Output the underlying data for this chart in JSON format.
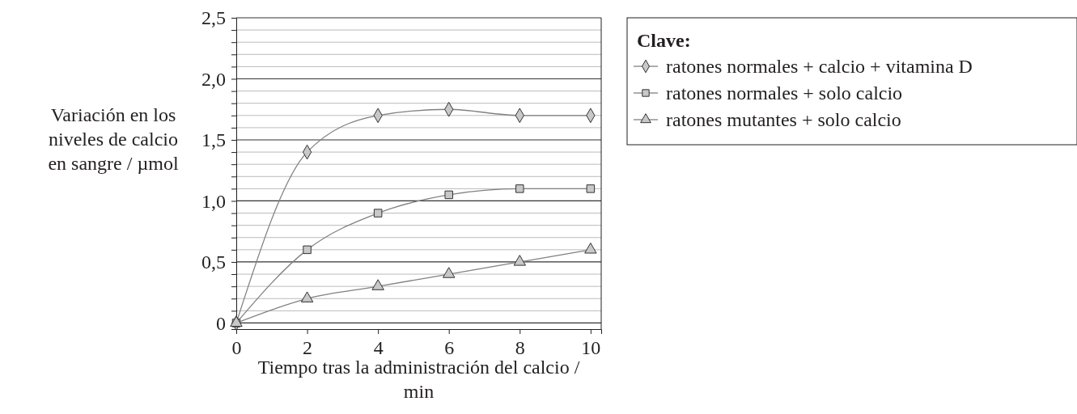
{
  "chart_data": {
    "type": "line",
    "xlabel": "Tiempo tras la administración del calcio / min",
    "ylabel": "Variación en los niveles de calcio en sangre / µmol",
    "legend_title": "Clave:",
    "legend": "right",
    "grid": "y",
    "line_style": "solid",
    "x": [
      0,
      2,
      4,
      6,
      8,
      10
    ],
    "xlim": [
      0,
      10.3
    ],
    "xticks": [
      0,
      2,
      4,
      6,
      8,
      10
    ],
    "ylim": [
      -0.05,
      2.5
    ],
    "yticks": [
      {
        "value": 0,
        "label": "0"
      },
      {
        "value": 0.1,
        "label": null
      },
      {
        "value": 0.2,
        "label": null
      },
      {
        "value": 0.3,
        "label": null
      },
      {
        "value": 0.4,
        "label": null
      },
      {
        "value": 0.5,
        "label": "0,5"
      },
      {
        "value": 0.6,
        "label": null
      },
      {
        "value": 0.7,
        "label": null
      },
      {
        "value": 0.8,
        "label": null
      },
      {
        "value": 0.9,
        "label": null
      },
      {
        "value": 1,
        "label": "1,0"
      },
      {
        "value": 1.1,
        "label": null
      },
      {
        "value": 1.2,
        "label": null
      },
      {
        "value": 1.3,
        "label": null
      },
      {
        "value": 1.4,
        "label": null
      },
      {
        "value": 1.5,
        "label": "1,5"
      },
      {
        "value": 1.6,
        "label": null
      },
      {
        "value": 1.7,
        "label": null
      },
      {
        "value": 1.8,
        "label": null
      },
      {
        "value": 1.9,
        "label": null
      },
      {
        "value": 2,
        "label": "2,0"
      },
      {
        "value": 2.1,
        "label": null
      },
      {
        "value": 2.2,
        "label": null
      },
      {
        "value": 2.3,
        "label": null
      },
      {
        "value": 2.4,
        "label": null
      },
      {
        "value": 2.5,
        "label": "2,5"
      }
    ],
    "series": [
      {
        "name": "ratones normales + calcio + vitamina D",
        "color": "#808080",
        "marker": "diamond",
        "values": [
          0,
          1.4,
          1.7,
          1.75,
          1.7,
          1.7
        ]
      },
      {
        "name": "ratones normales + solo calcio",
        "color": "#808080",
        "marker": "square",
        "values": [
          0,
          0.6,
          0.9,
          1.05,
          1.1,
          1.1
        ]
      },
      {
        "name": "ratones mutantes + solo calcio",
        "color": "#808080",
        "marker": "triangle",
        "values": [
          0,
          0.2,
          0.3,
          0.4,
          0.5,
          0.6
        ]
      }
    ]
  }
}
